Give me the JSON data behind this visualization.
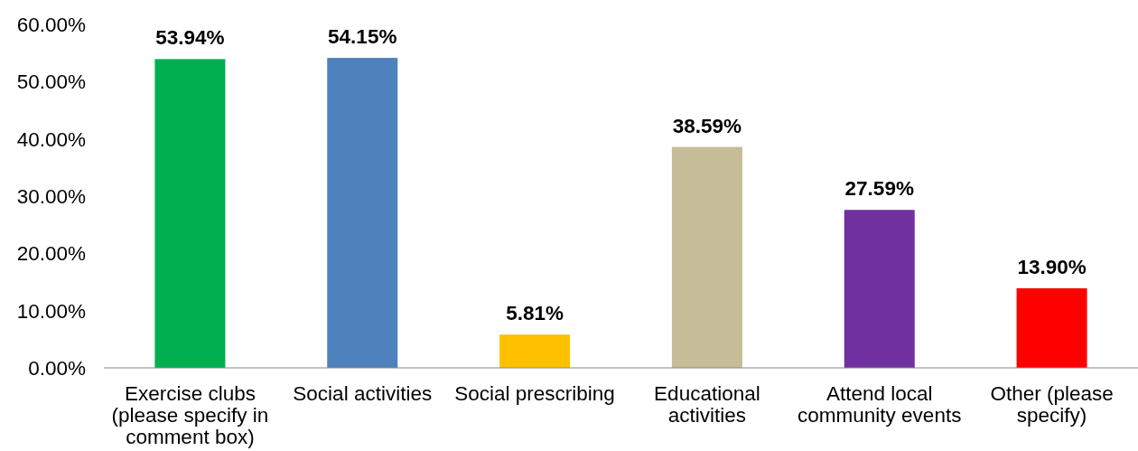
{
  "chart_data": {
    "type": "bar",
    "categories": [
      "Exercise clubs (please specify in comment box)",
      "Social activities",
      "Social prescribing",
      "Educational activities",
      "Attend local community events",
      "Other (please specify)"
    ],
    "values": [
      53.94,
      54.15,
      5.81,
      38.59,
      27.59,
      13.9
    ],
    "value_labels": [
      "53.94%",
      "54.15%",
      "5.81%",
      "38.59%",
      "27.59%",
      "13.90%"
    ],
    "colors": [
      "#00b050",
      "#4f81bd",
      "#ffc000",
      "#c4bd97",
      "#7030a0",
      "#ff0000"
    ],
    "ylim": [
      0,
      60
    ],
    "yticks": [
      {
        "value": 0,
        "label": "0.00%"
      },
      {
        "value": 10,
        "label": "10.00%"
      },
      {
        "value": 20,
        "label": "20.00%"
      },
      {
        "value": 30,
        "label": "30.00%"
      },
      {
        "value": 40,
        "label": "40.00%"
      },
      {
        "value": 50,
        "label": "50.00%"
      },
      {
        "value": 60,
        "label": "60.00%"
      }
    ],
    "grid": false
  }
}
